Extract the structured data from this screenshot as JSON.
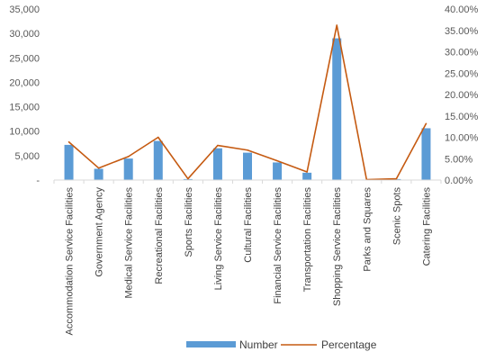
{
  "chart_data": {
    "type": "bar",
    "categories": [
      "Accommodation Service Facilities",
      "Government Agency",
      "Medical Service Facilities",
      "Recreational Facilities",
      "Sports Facilities",
      "Living Service Facilities",
      "Cultural Facilities",
      "Financial Service Facilities",
      "Transportation Facilities",
      "Shopping Service Facilities",
      "Parks and Squares",
      "Scenic Spots",
      "Catering Facilities"
    ],
    "series": [
      {
        "name": "Number",
        "type": "bar",
        "axis": "left",
        "color": "#5b9bd5",
        "values": [
          7200,
          2300,
          4400,
          8000,
          200,
          6500,
          5600,
          3600,
          1500,
          29000,
          100,
          200,
          10600
        ]
      },
      {
        "name": "Percentage",
        "type": "line",
        "axis": "right",
        "color": "#c55a11",
        "values": [
          8.9,
          2.8,
          5.5,
          10.0,
          0.3,
          8.1,
          7.0,
          4.5,
          1.9,
          36.2,
          0.1,
          0.3,
          13.2
        ]
      }
    ],
    "y_left": {
      "range": [
        0,
        35000
      ],
      "ticks": [
        "-",
        "5,000",
        "10,000",
        "15,000",
        "20,000",
        "25,000",
        "30,000",
        "35,000"
      ]
    },
    "y_right": {
      "range": [
        0,
        40
      ],
      "ticks": [
        "0.00%",
        "5.00%",
        "10.00%",
        "15.00%",
        "20.00%",
        "25.00%",
        "30.00%",
        "35.00%",
        "40.00%"
      ]
    },
    "legend_position": "bottom",
    "grid": false
  }
}
